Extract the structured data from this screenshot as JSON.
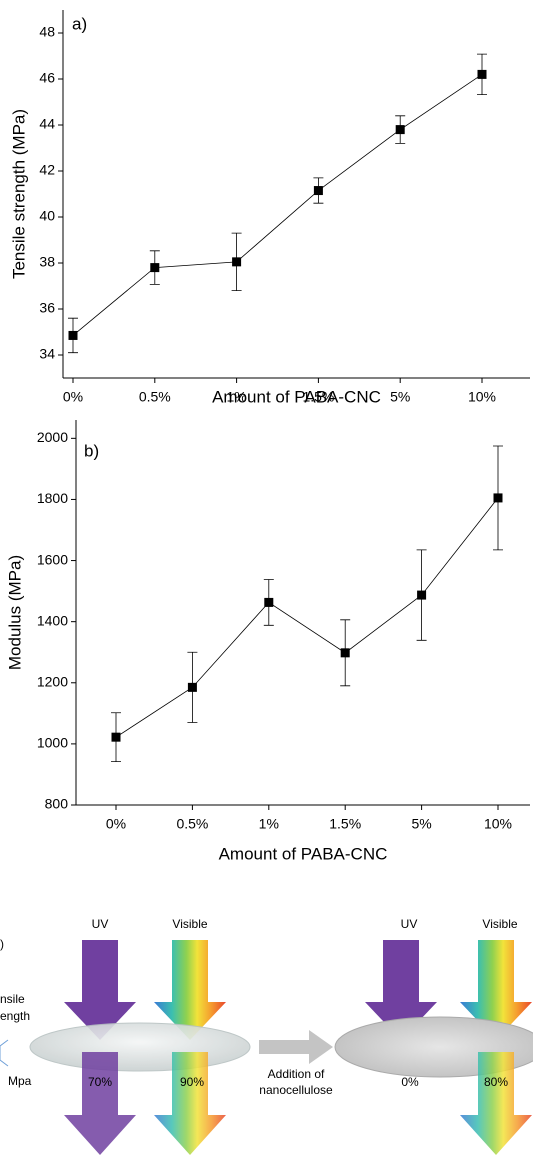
{
  "chart_data": [
    {
      "type": "line",
      "annotation": "a)",
      "x_label": "Amount of PABA-CNC",
      "y_label": "Tensile strength (MPa)",
      "categories": [
        "0%",
        "0.5%",
        "1%",
        "1.5%",
        "5%",
        "10%"
      ],
      "values": [
        34.85,
        37.8,
        38.05,
        41.15,
        43.8,
        46.2
      ],
      "errors": [
        0.75,
        0.73,
        1.25,
        0.55,
        0.6,
        0.88
      ],
      "color": "#000000",
      "ylim": [
        33,
        49
      ],
      "yticks": [
        34,
        36,
        38,
        40,
        42,
        44,
        46,
        48
      ]
    },
    {
      "type": "line",
      "annotation": "b)",
      "x_label": "Amount of PABA-CNC",
      "y_label": "Modulus (MPa)",
      "categories": [
        "0%",
        "0.5%",
        "1%",
        "1.5%",
        "5%",
        "10%"
      ],
      "values": [
        1022,
        1185,
        1463,
        1298,
        1487,
        1805
      ],
      "errors": [
        80,
        115,
        75,
        108,
        148,
        170
      ],
      "color": "#000000",
      "ylim": [
        800,
        2060
      ],
      "yticks": [
        800,
        1000,
        1200,
        1400,
        1600,
        1800,
        2000
      ]
    }
  ],
  "diagram": {
    "panel": ")",
    "left_label": [
      "nsile",
      "ength"
    ],
    "unit": "Mpa",
    "before": {
      "uv": "UV",
      "visible": "Visible",
      "uv_pass": "70%",
      "visible_pass": "90%"
    },
    "process": [
      "Addition of",
      "nanocellulose"
    ],
    "after": {
      "uv": "UV",
      "visible": "Visible",
      "uv_pass": "0%",
      "visible_pass": "80%"
    }
  }
}
